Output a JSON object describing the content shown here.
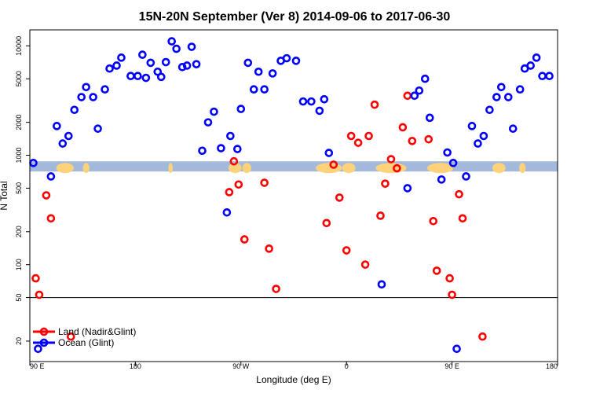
{
  "chart_data": {
    "type": "scatter",
    "title": "15N-20N September (Ver 8)   2014-09-06 to 2017-06-30",
    "xlabel": "Longitude (deg E)",
    "ylabel": "N Total",
    "x_ticks": [
      {
        "x": 0,
        "label": "90 E"
      },
      {
        "x": 90,
        "label": "180"
      },
      {
        "x": 180,
        "label": "90 W"
      },
      {
        "x": 270,
        "label": "0"
      },
      {
        "x": 360,
        "label": "90 E"
      },
      {
        "x": 450,
        "label": "180"
      }
    ],
    "y_ticks": [
      {
        "y": 20,
        "label": "20"
      },
      {
        "y": 50,
        "label": "50"
      },
      {
        "y": 100,
        "label": "100"
      },
      {
        "y": 200,
        "label": "200"
      },
      {
        "y": 500,
        "label": "500"
      },
      {
        "y": 1000,
        "label": "1000"
      },
      {
        "y": 2000,
        "label": "2000"
      },
      {
        "y": 5000,
        "label": "5000"
      },
      {
        "y": 10000,
        "label": "10000"
      }
    ],
    "xlim": [
      0,
      450
    ],
    "ylim": [
      13,
      14000
    ],
    "threshold_line_y": 50,
    "map_band": {
      "y_min": 710,
      "y_max": 880
    },
    "legend": {
      "position": "bottom-left"
    },
    "series": [
      {
        "name": "Land (Nadir&Glint)",
        "color": "#ff0000",
        "points": [
          [
            5,
            75
          ],
          [
            8,
            53
          ],
          [
            14,
            430
          ],
          [
            18,
            265
          ],
          [
            35,
            22
          ],
          [
            170,
            460
          ],
          [
            174,
            880
          ],
          [
            178,
            540
          ],
          [
            183,
            170
          ],
          [
            200,
            560
          ],
          [
            204,
            140
          ],
          [
            210,
            60
          ],
          [
            253,
            240
          ],
          [
            259,
            820
          ],
          [
            264,
            410
          ],
          [
            270,
            135
          ],
          [
            274,
            1500
          ],
          [
            280,
            1300
          ],
          [
            286,
            100
          ],
          [
            289,
            1500
          ],
          [
            294,
            2900
          ],
          [
            299,
            280
          ],
          [
            303,
            550
          ],
          [
            308,
            920
          ],
          [
            313,
            760
          ],
          [
            318,
            1800
          ],
          [
            322,
            3500
          ],
          [
            326,
            1350
          ],
          [
            340,
            1400
          ],
          [
            344,
            250
          ],
          [
            347,
            88
          ],
          [
            358,
            75
          ],
          [
            360,
            53
          ],
          [
            366,
            440
          ],
          [
            369,
            265
          ],
          [
            386,
            22
          ]
        ]
      },
      {
        "name": "Ocean (Glint)",
        "color": "#0000ff",
        "points": [
          [
            3,
            850
          ],
          [
            7,
            17
          ],
          [
            18,
            640
          ],
          [
            23,
            1850
          ],
          [
            28,
            1280
          ],
          [
            33,
            1500
          ],
          [
            38,
            2600
          ],
          [
            44,
            3400
          ],
          [
            48,
            4200
          ],
          [
            54,
            3400
          ],
          [
            58,
            1750
          ],
          [
            64,
            4000
          ],
          [
            68,
            6200
          ],
          [
            74,
            6600
          ],
          [
            78,
            7800
          ],
          [
            86,
            5300
          ],
          [
            92,
            5300
          ],
          [
            96,
            8300
          ],
          [
            99,
            5100
          ],
          [
            103,
            7000
          ],
          [
            109,
            5800
          ],
          [
            112,
            5200
          ],
          [
            116,
            7100
          ],
          [
            121,
            11000
          ],
          [
            125,
            9400
          ],
          [
            130,
            6400
          ],
          [
            134,
            6600
          ],
          [
            138,
            9800
          ],
          [
            142,
            6800
          ],
          [
            147,
            1100
          ],
          [
            152,
            2000
          ],
          [
            157,
            2500
          ],
          [
            163,
            1160
          ],
          [
            168,
            300
          ],
          [
            171,
            1500
          ],
          [
            177,
            1140
          ],
          [
            180,
            2650
          ],
          [
            186,
            7000
          ],
          [
            191,
            4000
          ],
          [
            195,
            5800
          ],
          [
            200,
            4000
          ],
          [
            207,
            5600
          ],
          [
            214,
            7300
          ],
          [
            219,
            7700
          ],
          [
            227,
            7300
          ],
          [
            233,
            3100
          ],
          [
            240,
            3100
          ],
          [
            247,
            2550
          ],
          [
            251,
            3250
          ],
          [
            255,
            1050
          ],
          [
            300,
            66
          ],
          [
            322,
            500
          ],
          [
            328,
            3500
          ],
          [
            332,
            3900
          ],
          [
            337,
            5000
          ],
          [
            341,
            2200
          ],
          [
            351,
            600
          ],
          [
            356,
            1060
          ],
          [
            361,
            850
          ],
          [
            364,
            17
          ],
          [
            372,
            640
          ],
          [
            377,
            1850
          ],
          [
            382,
            1280
          ],
          [
            387,
            1500
          ],
          [
            392,
            2600
          ],
          [
            398,
            3400
          ],
          [
            402,
            4200
          ],
          [
            408,
            3400
          ],
          [
            412,
            1750
          ],
          [
            418,
            4000
          ],
          [
            422,
            6200
          ],
          [
            427,
            6600
          ],
          [
            432,
            7800
          ],
          [
            437,
            5300
          ],
          [
            443,
            5300
          ]
        ]
      }
    ]
  }
}
